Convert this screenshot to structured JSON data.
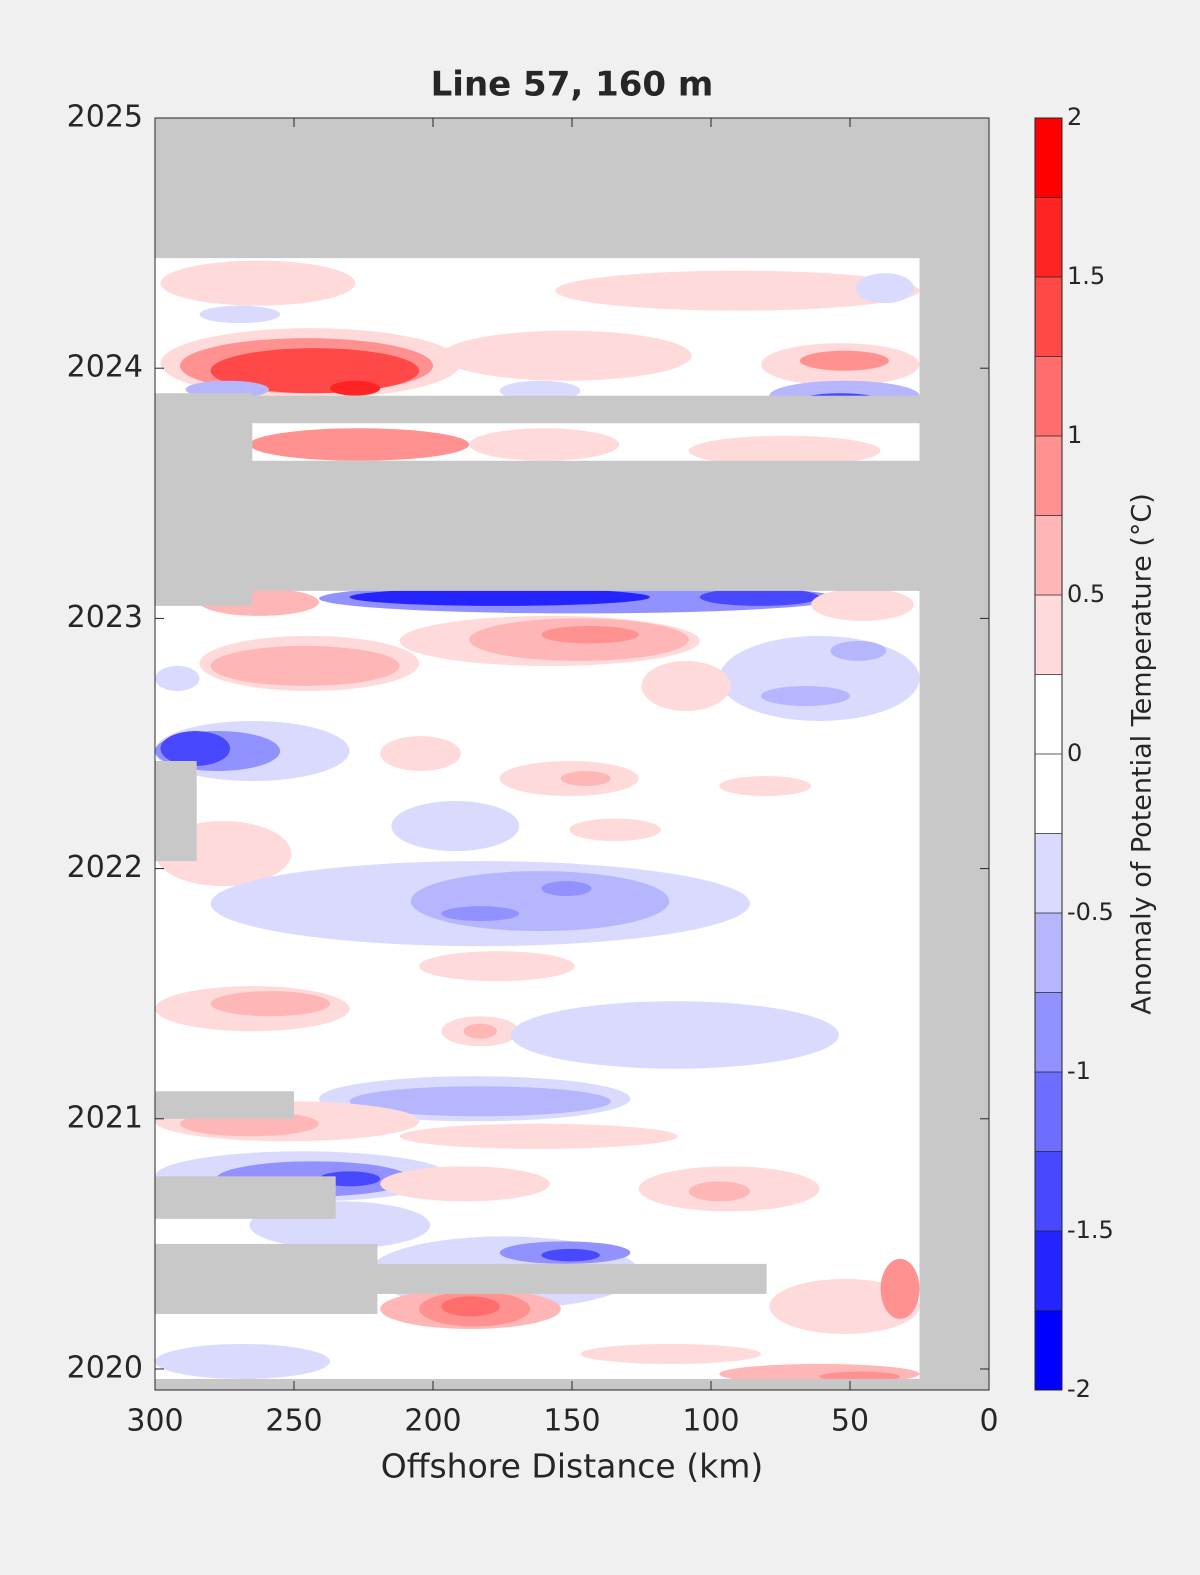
{
  "chart_data": {
    "type": "contour",
    "title": "Line 57, 160 m",
    "x_label": "Offshore Distance (km)",
    "colorbar_label": "Anomaly of Potential Temperature (°C)",
    "xlim": [
      300,
      0
    ],
    "xticks": [
      300,
      250,
      200,
      150,
      100,
      50,
      0
    ],
    "ylim": [
      2019.916,
      2025
    ],
    "yticks": [
      2020,
      2021,
      2022,
      2023,
      2024,
      2025
    ],
    "clim": [
      -2,
      2
    ],
    "cticks": [
      -2,
      -1.5,
      -1,
      -0.5,
      0,
      0.5,
      1,
      1.5,
      2
    ],
    "levels": [
      -2,
      -1.75,
      -1.5,
      -1.25,
      -1,
      -0.75,
      -0.5,
      -0.25,
      0,
      0.25,
      0.5,
      0.75,
      1,
      1.25,
      1.5,
      1.75,
      2
    ],
    "colors": [
      "#0000ff",
      "#2424ff",
      "#4848ff",
      "#6d6dff",
      "#9191ff",
      "#b6b6ff",
      "#dadaff",
      "#ffffff",
      "#ffffff",
      "#ffdada",
      "#ffb6b6",
      "#ff9191",
      "#ff6d6d",
      "#ff4848",
      "#ff2424",
      "#ff0000"
    ],
    "no_data_color": "#c8c8c8",
    "features": [
      {
        "x": [
          298,
          228
        ],
        "y": [
          2024.25,
          2024.43
        ],
        "value": 0.4
      },
      {
        "x": [
          156,
          25
        ],
        "y": [
          2024.23,
          2024.39
        ],
        "value": 0.4
      },
      {
        "x": [
          284,
          255
        ],
        "y": [
          2024.18,
          2024.25
        ],
        "value": -0.4
      },
      {
        "x": [
          48,
          27
        ],
        "y": [
          2024.26,
          2024.38
        ],
        "value": -0.4
      },
      {
        "x": [
          298,
          190
        ],
        "y": [
          2023.88,
          2024.16
        ],
        "value": 0.4
      },
      {
        "x": [
          291,
          200
        ],
        "y": [
          2023.9,
          2024.12
        ],
        "value": 0.9
      },
      {
        "x": [
          280,
          205
        ],
        "y": [
          2023.9,
          2024.08
        ],
        "value": 1.4
      },
      {
        "x": [
          237,
          219
        ],
        "y": [
          2023.89,
          2023.95
        ],
        "value": 1.6
      },
      {
        "x": [
          197,
          107
        ],
        "y": [
          2023.95,
          2024.15
        ],
        "value": 0.4
      },
      {
        "x": [
          82,
          25
        ],
        "y": [
          2023.93,
          2024.1
        ],
        "value": 0.4
      },
      {
        "x": [
          68,
          36
        ],
        "y": [
          2023.99,
          2024.07
        ],
        "value": 0.9
      },
      {
        "x": [
          79,
          25
        ],
        "y": [
          2023.83,
          2023.95
        ],
        "value": -0.6
      },
      {
        "x": [
          68,
          39
        ],
        "y": [
          2023.84,
          2023.9
        ],
        "value": -1.4
      },
      {
        "x": [
          176,
          147
        ],
        "y": [
          2023.87,
          2023.95
        ],
        "value": -0.4
      },
      {
        "x": [
          289,
          259
        ],
        "y": [
          2023.88,
          2023.95
        ],
        "value": -0.6
      },
      {
        "x": [
          187,
          133
        ],
        "y": [
          2023.63,
          2023.76
        ],
        "value": 0.4
      },
      {
        "x": [
          266,
          187
        ],
        "y": [
          2023.63,
          2023.76
        ],
        "value": 0.9
      },
      {
        "x": [
          108,
          39
        ],
        "y": [
          2023.61,
          2023.73
        ],
        "value": 0.4
      },
      {
        "x": [
          241,
          54
        ],
        "y": [
          2023.02,
          2023.14
        ],
        "value": -0.9
      },
      {
        "x": [
          230,
          122
        ],
        "y": [
          2023.05,
          2023.12
        ],
        "value": -1.6
      },
      {
        "x": [
          104,
          61
        ],
        "y": [
          2023.05,
          2023.12
        ],
        "value": -1.4
      },
      {
        "x": [
          284,
          241
        ],
        "y": [
          2023.01,
          2023.12
        ],
        "value": 0.6
      },
      {
        "x": [
          64,
          27
        ],
        "y": [
          2022.99,
          2023.12
        ],
        "value": 0.4
      },
      {
        "x": [
          212,
          104
        ],
        "y": [
          2022.81,
          2023.01
        ],
        "value": 0.4
      },
      {
        "x": [
          187,
          108
        ],
        "y": [
          2022.83,
          2023.0
        ],
        "value": 0.6
      },
      {
        "x": [
          161,
          126
        ],
        "y": [
          2022.9,
          2022.97
        ],
        "value": 0.9
      },
      {
        "x": [
          284,
          205
        ],
        "y": [
          2022.71,
          2022.93
        ],
        "value": 0.4
      },
      {
        "x": [
          280,
          212
        ],
        "y": [
          2022.73,
          2022.89
        ],
        "value": 0.7
      },
      {
        "x": [
          97,
          25
        ],
        "y": [
          2022.59,
          2022.93
        ],
        "value": -0.4
      },
      {
        "x": [
          57,
          37
        ],
        "y": [
          2022.83,
          2022.91
        ],
        "value": -0.7
      },
      {
        "x": [
          82,
          50
        ],
        "y": [
          2022.65,
          2022.73
        ],
        "value": -0.7
      },
      {
        "x": [
          125,
          93
        ],
        "y": [
          2022.63,
          2022.83
        ],
        "value": 0.4
      },
      {
        "x": [
          300,
          230
        ],
        "y": [
          2022.35,
          2022.59
        ],
        "value": -0.5
      },
      {
        "x": [
          300,
          255
        ],
        "y": [
          2022.39,
          2022.55
        ],
        "value": -0.9
      },
      {
        "x": [
          298,
          273
        ],
        "y": [
          2022.41,
          2022.55
        ],
        "value": -1.3
      },
      {
        "x": [
          300,
          284
        ],
        "y": [
          2022.71,
          2022.81
        ],
        "value": -0.4
      },
      {
        "x": [
          219,
          190
        ],
        "y": [
          2022.39,
          2022.53
        ],
        "value": 0.4
      },
      {
        "x": [
          176,
          126
        ],
        "y": [
          2022.29,
          2022.43
        ],
        "value": 0.4
      },
      {
        "x": [
          154,
          136
        ],
        "y": [
          2022.33,
          2022.39
        ],
        "value": 0.7
      },
      {
        "x": [
          215,
          169
        ],
        "y": [
          2022.07,
          2022.27
        ],
        "value": -0.4
      },
      {
        "x": [
          151,
          118
        ],
        "y": [
          2022.11,
          2022.2
        ],
        "value": 0.4
      },
      {
        "x": [
          97,
          64
        ],
        "y": [
          2022.29,
          2022.37
        ],
        "value": 0.4
      },
      {
        "x": [
          300,
          251
        ],
        "y": [
          2021.93,
          2022.19
        ],
        "value": 0.4
      },
      {
        "x": [
          280,
          86
        ],
        "y": [
          2021.69,
          2022.03
        ],
        "value": -0.4
      },
      {
        "x": [
          208,
          115
        ],
        "y": [
          2021.75,
          2021.99
        ],
        "value": -0.7
      },
      {
        "x": [
          197,
          169
        ],
        "y": [
          2021.79,
          2021.85
        ],
        "value": -0.9
      },
      {
        "x": [
          161,
          143
        ],
        "y": [
          2021.89,
          2021.95
        ],
        "value": -0.9
      },
      {
        "x": [
          205,
          149
        ],
        "y": [
          2021.55,
          2021.67
        ],
        "value": 0.4
      },
      {
        "x": [
          300,
          230
        ],
        "y": [
          2021.35,
          2021.53
        ],
        "value": 0.4
      },
      {
        "x": [
          280,
          237
        ],
        "y": [
          2021.41,
          2021.51
        ],
        "value": 0.7
      },
      {
        "x": [
          197,
          169
        ],
        "y": [
          2021.29,
          2021.41
        ],
        "value": 0.4
      },
      {
        "x": [
          189,
          177
        ],
        "y": [
          2021.32,
          2021.38
        ],
        "value": 0.7
      },
      {
        "x": [
          172,
          54
        ],
        "y": [
          2021.2,
          2021.47
        ],
        "value": -0.4
      },
      {
        "x": [
          241,
          129
        ],
        "y": [
          2020.99,
          2021.17
        ],
        "value": -0.4
      },
      {
        "x": [
          230,
          136
        ],
        "y": [
          2021.01,
          2021.13
        ],
        "value": -0.7
      },
      {
        "x": [
          300,
          205
        ],
        "y": [
          2020.91,
          2021.07
        ],
        "value": 0.4
      },
      {
        "x": [
          291,
          241
        ],
        "y": [
          2020.93,
          2021.03
        ],
        "value": 0.7
      },
      {
        "x": [
          212,
          112
        ],
        "y": [
          2020.88,
          2020.98
        ],
        "value": 0.4
      },
      {
        "x": [
          300,
          194
        ],
        "y": [
          2020.67,
          2020.87
        ],
        "value": -0.5
      },
      {
        "x": [
          278,
          208
        ],
        "y": [
          2020.69,
          2020.83
        ],
        "value": -0.9
      },
      {
        "x": [
          241,
          219
        ],
        "y": [
          2020.73,
          2020.79
        ],
        "value": -1.3
      },
      {
        "x": [
          219,
          158
        ],
        "y": [
          2020.67,
          2020.81
        ],
        "value": 0.4
      },
      {
        "x": [
          126,
          61
        ],
        "y": [
          2020.63,
          2020.81
        ],
        "value": 0.4
      },
      {
        "x": [
          108,
          86
        ],
        "y": [
          2020.67,
          2020.75
        ],
        "value": 0.7
      },
      {
        "x": [
          266,
          201
        ],
        "y": [
          2020.48,
          2020.67
        ],
        "value": -0.4
      },
      {
        "x": [
          223,
          126
        ],
        "y": [
          2020.24,
          2020.53
        ],
        "value": -0.5
      },
      {
        "x": [
          176,
          129
        ],
        "y": [
          2020.42,
          2020.51
        ],
        "value": -0.9
      },
      {
        "x": [
          161,
          140
        ],
        "y": [
          2020.43,
          2020.48
        ],
        "value": -1.3
      },
      {
        "x": [
          219,
          154
        ],
        "y": [
          2020.16,
          2020.32
        ],
        "value": 0.5
      },
      {
        "x": [
          205,
          165
        ],
        "y": [
          2020.17,
          2020.31
        ],
        "value": 0.9
      },
      {
        "x": [
          197,
          176
        ],
        "y": [
          2020.21,
          2020.29
        ],
        "value": 1.2
      },
      {
        "x": [
          79,
          25
        ],
        "y": [
          2020.14,
          2020.36
        ],
        "value": 0.4
      },
      {
        "x": [
          39,
          25
        ],
        "y": [
          2020.2,
          2020.44
        ],
        "value": 0.9
      },
      {
        "x": [
          300,
          237
        ],
        "y": [
          2019.96,
          2020.1
        ],
        "value": -0.4
      },
      {
        "x": [
          97,
          25
        ],
        "y": [
          2019.94,
          2020.02
        ],
        "value": 0.5
      },
      {
        "x": [
          61,
          32
        ],
        "y": [
          2019.95,
          2019.99
        ],
        "value": 0.9
      },
      {
        "x": [
          147,
          82
        ],
        "y": [
          2020.02,
          2020.1
        ],
        "value": 0.4
      }
    ],
    "no_data": [
      {
        "x": [
          300,
          0
        ],
        "y": [
          2024.44,
          2025
        ]
      },
      {
        "x": [
          25,
          0
        ],
        "y": [
          2019.916,
          2025
        ]
      },
      {
        "x": [
          300,
          0
        ],
        "y": [
          2019.916,
          2019.96
        ]
      },
      {
        "x": [
          300,
          25
        ],
        "y": [
          2023.11,
          2023.63
        ]
      },
      {
        "x": [
          300,
          265
        ],
        "y": [
          2023.05,
          2023.9
        ]
      },
      {
        "x": [
          300,
          25
        ],
        "y": [
          2023.78,
          2023.89
        ]
      },
      {
        "x": [
          300,
          285
        ],
        "y": [
          2022.03,
          2022.43
        ]
      },
      {
        "x": [
          300,
          250
        ],
        "y": [
          2021.0,
          2021.11
        ]
      },
      {
        "x": [
          300,
          235
        ],
        "y": [
          2020.6,
          2020.77
        ]
      },
      {
        "x": [
          300,
          220
        ],
        "y": [
          2020.22,
          2020.5
        ]
      },
      {
        "x": [
          220,
          80
        ],
        "y": [
          2020.3,
          2020.42
        ]
      }
    ]
  }
}
